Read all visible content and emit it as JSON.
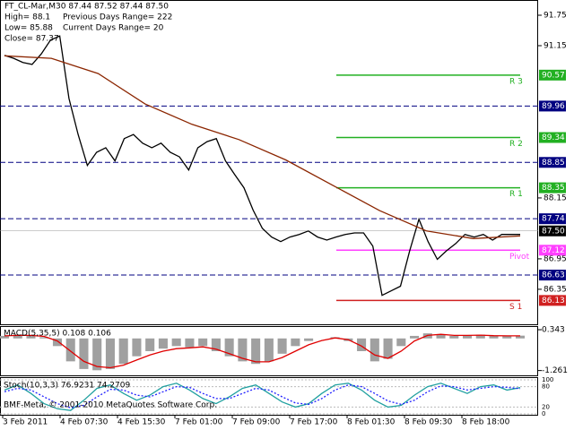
{
  "chart_data": [
    {
      "type": "line",
      "header": {
        "symbol": "FT_CL-Mar,M30  87.44 87.52 87.44 87.50",
        "high": "High= 88.1",
        "prev_range": "Previous Days Range= 222",
        "low": "Low= 85.88",
        "curr_range": "Current Days Range= 20",
        "close": "Close= 87.37"
      },
      "ylim": [
        85.66,
        92.05
      ],
      "yticks": [
        91.75,
        91.15,
        88.15,
        86.95,
        86.35
      ],
      "series": [
        {
          "color": "#000000",
          "values": [
            90.96,
            90.9,
            90.82,
            90.78,
            90.99,
            91.26,
            91.34,
            90.11,
            89.4,
            88.79,
            89.05,
            89.14,
            88.88,
            89.32,
            89.4,
            89.23,
            89.14,
            89.23,
            89.05,
            88.96,
            88.7,
            89.14,
            89.26,
            89.32,
            88.88,
            88.61,
            88.35,
            87.91,
            87.55,
            87.38,
            87.29,
            87.38,
            87.43,
            87.5,
            87.38,
            87.32,
            87.38,
            87.43,
            87.46,
            87.46,
            87.2,
            86.23,
            86.32,
            86.41,
            87.11,
            87.73,
            87.29,
            86.94,
            87.11,
            87.25,
            87.43,
            87.38,
            87.43,
            87.32,
            87.43,
            87.43,
            87.43
          ]
        },
        {
          "color": "#8b2500",
          "values": [
            90.95,
            90.9,
            90.6,
            90.0,
            89.6,
            89.3,
            88.9,
            88.4,
            87.9,
            87.5,
            87.35,
            87.4
          ]
        }
      ],
      "levels": [
        {
          "value": 90.57,
          "label": "R 3",
          "color": "#22b022"
        },
        {
          "value": 89.34,
          "label": "R 2",
          "color": "#22b022"
        },
        {
          "value": 88.35,
          "label": "R 1",
          "color": "#22b022"
        },
        {
          "value": 87.12,
          "label": "Pivot",
          "color": "#ff40ff"
        },
        {
          "value": 86.13,
          "label": "S 1",
          "color": "#d02020"
        }
      ],
      "dashed": {
        "color": "#000080",
        "values": [
          89.96,
          88.85,
          87.74,
          86.63
        ]
      },
      "last_price": {
        "value": 87.5,
        "label": "87.50"
      }
    },
    {
      "type": "macd",
      "title": "MACD(5,35,5) 0.108 0.106",
      "ylim": [
        -1.45,
        0.45
      ],
      "yticks": [
        0.343,
        -1.261
      ],
      "histogram": {
        "color": "#a0a0a0",
        "values": [
          0.1,
          0.15,
          0.1,
          0.05,
          -0.3,
          -0.9,
          -1.2,
          -1.25,
          -1.2,
          -1.0,
          -0.7,
          -0.5,
          -0.4,
          -0.3,
          -0.35,
          -0.3,
          -0.5,
          -0.7,
          -0.9,
          -1.0,
          -0.9,
          -0.6,
          -0.3,
          -0.1,
          0,
          0.05,
          -0.1,
          -0.5,
          -0.9,
          -0.8,
          -0.3,
          0.1,
          0.2,
          0.15,
          0.1,
          0.12,
          0.15,
          0.1,
          0.1,
          0.11
        ]
      },
      "signal": {
        "color": "#e00000",
        "values": [
          0.1,
          0.12,
          0.12,
          0.08,
          -0.1,
          -0.5,
          -0.9,
          -1.1,
          -1.15,
          -1.05,
          -0.85,
          -0.65,
          -0.5,
          -0.4,
          -0.37,
          -0.33,
          -0.42,
          -0.6,
          -0.78,
          -0.92,
          -0.92,
          -0.75,
          -0.5,
          -0.25,
          -0.08,
          0.02,
          -0.05,
          -0.3,
          -0.65,
          -0.78,
          -0.5,
          -0.1,
          0.12,
          0.16,
          0.12,
          0.12,
          0.13,
          0.11,
          0.1,
          0.1
        ]
      }
    },
    {
      "type": "stoch",
      "title": "Stoch(10,3,3) 76.9231 74.2709",
      "copyright": "BMF-Meta, © 2001-2010 MetaQuotes Software Corp.",
      "ylim": [
        0,
        100
      ],
      "yticks": [
        100,
        80,
        20,
        0
      ],
      "main": {
        "color": "#20a0a0",
        "values": [
          70,
          85,
          60,
          30,
          15,
          10,
          40,
          75,
          85,
          60,
          40,
          55,
          80,
          90,
          70,
          45,
          30,
          50,
          75,
          85,
          60,
          35,
          20,
          30,
          60,
          85,
          90,
          70,
          40,
          20,
          25,
          55,
          80,
          90,
          75,
          60,
          80,
          85,
          70,
          77
        ]
      },
      "signal": {
        "color": "#2020ff",
        "values": [
          65,
          75,
          70,
          50,
          30,
          18,
          25,
          50,
          72,
          70,
          55,
          50,
          65,
          80,
          78,
          60,
          45,
          45,
          60,
          75,
          70,
          50,
          32,
          28,
          45,
          70,
          85,
          80,
          60,
          38,
          28,
          40,
          65,
          82,
          80,
          70,
          75,
          80,
          78,
          74
        ]
      },
      "x_labels": [
        "3 Feb 2011",
        "4 Feb 07:30",
        "4 Feb 15:30",
        "7 Feb 01:00",
        "7 Feb 09:00",
        "7 Feb 17:00",
        "8 Feb 01:30",
        "8 Feb 09:30",
        "8 Feb 18:00"
      ]
    }
  ]
}
